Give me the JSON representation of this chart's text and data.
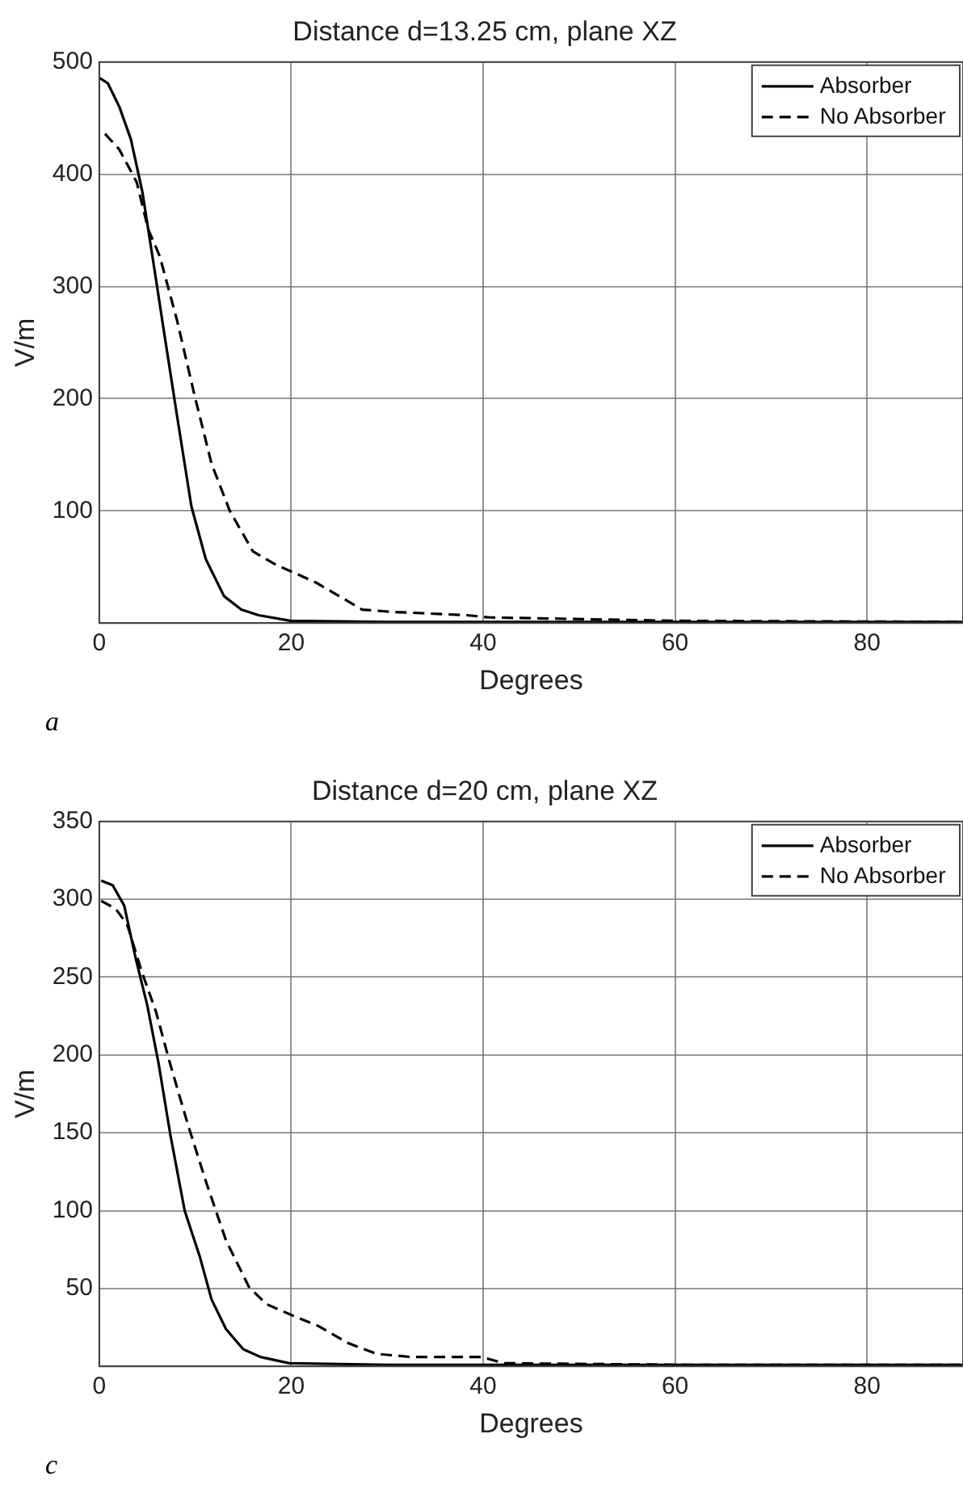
{
  "chart_data": [
    {
      "type": "line",
      "title": "Distance d=13.25 cm, plane XZ",
      "xlabel": "Degrees",
      "ylabel": "V/m",
      "xlim": [
        0,
        90
      ],
      "xticks": [
        0,
        20,
        40,
        60,
        80
      ],
      "ylim": [
        0,
        500
      ],
      "yticks": [
        100,
        200,
        300,
        400,
        500
      ],
      "grid": true,
      "legend": "top right",
      "marker": "none",
      "annotations": [
        "a"
      ],
      "series": [
        {
          "name": "Absorber",
          "color": "#000000",
          "line_style": "solid",
          "x": [
            0,
            0.9,
            2.1,
            3.3,
            4.5,
            5.7,
            6.9,
            8.1,
            9.6,
            11.1,
            13,
            14.8,
            16.6,
            19.9,
            30,
            60,
            90
          ],
          "values": [
            486,
            481,
            460,
            431,
            384,
            318,
            251,
            185,
            104,
            57,
            24,
            12,
            7,
            2,
            1,
            1,
            1
          ]
        },
        {
          "name": "No Absorber",
          "color": "#000000",
          "line_style": "dashed",
          "x": [
            0.6,
            2.1,
            3.9,
            5.1,
            6.3,
            8.1,
            9.9,
            11.7,
            13.6,
            16,
            18.4,
            20.8,
            22.6,
            25,
            27.4,
            30.4,
            38.3,
            40.7,
            60,
            90
          ],
          "values": [
            436,
            422,
            393,
            351,
            327,
            270,
            204,
            142,
            100,
            64,
            52,
            43,
            36,
            24,
            12,
            10,
            7,
            5,
            2,
            1
          ]
        }
      ]
    },
    {
      "type": "line",
      "title": "Distance d=20 cm, plane XZ",
      "xlabel": "Degrees",
      "ylabel": "V/m",
      "xlim": [
        0,
        90
      ],
      "xticks": [
        0,
        20,
        40,
        60,
        80
      ],
      "ylim": [
        0,
        350
      ],
      "yticks": [
        50,
        100,
        150,
        200,
        250,
        300,
        350
      ],
      "grid": true,
      "legend": "top right",
      "marker": "none",
      "annotations": [
        "c"
      ],
      "series": [
        {
          "name": "Absorber",
          "color": "#000000",
          "line_style": "solid",
          "x": [
            0.2,
            1.4,
            2.6,
            3.8,
            5,
            6.2,
            7.4,
            8.9,
            10.5,
            11.7,
            13.2,
            15,
            16.8,
            19.8,
            30,
            60,
            90
          ],
          "values": [
            312,
            309,
            296,
            262,
            232,
            194,
            149,
            100,
            70,
            43,
            24,
            11,
            6,
            2,
            1,
            1,
            1
          ]
        },
        {
          "name": "No Absorber",
          "color": "#000000",
          "line_style": "dashed",
          "x": [
            0.2,
            1.7,
            2.9,
            4.4,
            5.9,
            7.4,
            9.2,
            11.1,
            13.2,
            15.6,
            17.4,
            20.4,
            22.8,
            25.9,
            28.9,
            32.5,
            39.8,
            42.2,
            60,
            90
          ],
          "values": [
            299,
            294,
            284,
            254,
            228,
            194,
            156,
            119,
            81,
            51,
            40,
            32,
            26,
            15,
            8,
            6,
            6,
            2,
            1,
            1
          ]
        }
      ]
    }
  ]
}
